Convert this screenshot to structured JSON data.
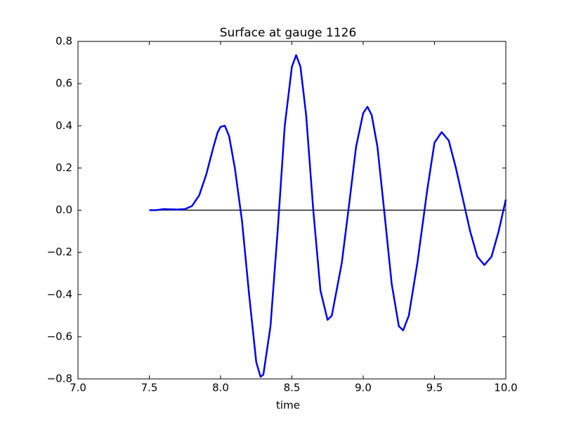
{
  "chart_data": {
    "type": "line",
    "title": "Surface at gauge 1126",
    "x_label": "time",
    "xlim": [
      7.0,
      10.0
    ],
    "xticks": [
      {
        "value": 7,
        "label": "7.0"
      },
      7.5,
      {
        "value": 8,
        "label": "8.0"
      },
      8.5,
      {
        "value": 9,
        "label": "9.0"
      },
      9.5,
      {
        "value": 10,
        "label": "10.0"
      }
    ],
    "ylim": [
      -0.8,
      0.8
    ],
    "yticks": [
      {
        "value": -0.8,
        "label": "−0.8"
      },
      {
        "value": -0.6,
        "label": "−0.6"
      },
      {
        "value": -0.4,
        "label": "−0.4"
      },
      {
        "value": -0.2,
        "label": "−0.2"
      },
      {
        "value": 0,
        "label": "0.0"
      },
      0.2,
      0.4,
      0.6,
      0.8
    ],
    "hline": 0,
    "hline_color": "#000000",
    "x": [
      7.5,
      7.55,
      7.6,
      7.7,
      7.75,
      7.8,
      7.85,
      7.9,
      7.95,
      7.98,
      8.0,
      8.03,
      8.06,
      8.1,
      8.15,
      8.2,
      8.25,
      8.28,
      8.3,
      8.35,
      8.4,
      8.45,
      8.5,
      8.53,
      8.56,
      8.6,
      8.65,
      8.7,
      8.75,
      8.78,
      8.85,
      8.9,
      8.95,
      9.0,
      9.03,
      9.06,
      9.1,
      9.15,
      9.2,
      9.25,
      9.28,
      9.32,
      9.38,
      9.45,
      9.5,
      9.55,
      9.6,
      9.65,
      9.7,
      9.75,
      9.8,
      9.85,
      9.9,
      9.95,
      10.0
    ],
    "series": [
      {
        "color": "#0000ee",
        "values": [
          0.0,
          0.0,
          0.005,
          0.003,
          0.005,
          0.02,
          0.07,
          0.17,
          0.3,
          0.37,
          0.395,
          0.4,
          0.35,
          0.2,
          -0.05,
          -0.4,
          -0.72,
          -0.79,
          -0.78,
          -0.55,
          -0.1,
          0.4,
          0.68,
          0.735,
          0.68,
          0.45,
          0.0,
          -0.38,
          -0.52,
          -0.5,
          -0.25,
          0.02,
          0.3,
          0.46,
          0.49,
          0.45,
          0.3,
          -0.02,
          -0.35,
          -0.55,
          -0.57,
          -0.5,
          -0.25,
          0.1,
          0.32,
          0.37,
          0.33,
          0.2,
          0.05,
          -0.1,
          -0.22,
          -0.26,
          -0.22,
          -0.1,
          0.05
        ]
      }
    ]
  }
}
